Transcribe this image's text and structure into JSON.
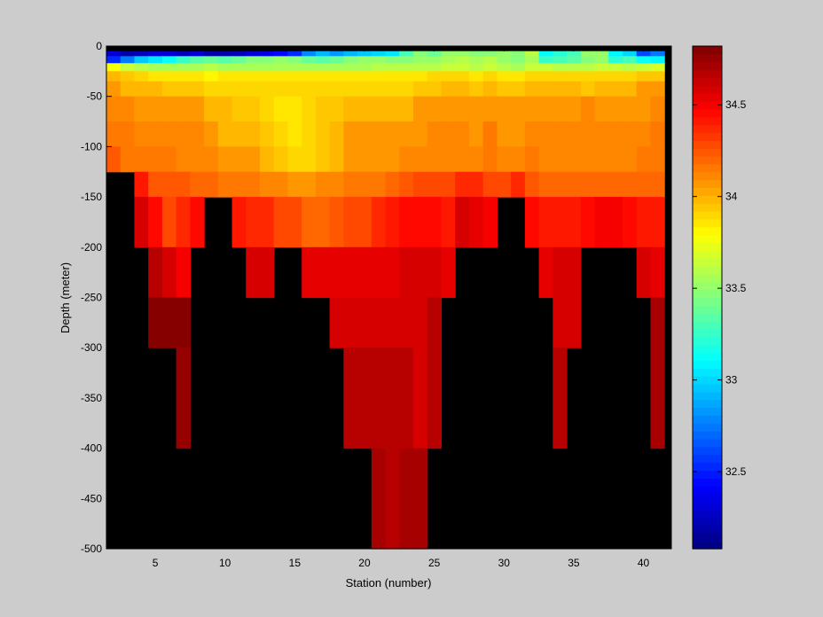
{
  "chart_data": {
    "type": "heatmap",
    "title": "",
    "xlabel": "Station (number)",
    "ylabel": "Depth (meter)",
    "xlim": [
      1.5,
      42
    ],
    "ylim": [
      -500,
      0
    ],
    "x_ticks": [
      5,
      10,
      15,
      20,
      25,
      30,
      35,
      40
    ],
    "y_ticks": [
      0,
      -50,
      -100,
      -150,
      -200,
      -250,
      -300,
      -350,
      -400,
      -450,
      -500
    ],
    "colorbar": {
      "range": [
        32.08,
        34.82
      ],
      "ticks": [
        32.5,
        33,
        33.5,
        34,
        34.5
      ],
      "colormap": "jet",
      "levels": 64
    },
    "missing_color": "#000000",
    "x_stations": [
      2,
      3,
      4,
      5,
      6,
      7,
      8,
      9,
      10,
      11,
      12,
      13,
      14,
      15,
      16,
      17,
      18,
      19,
      20,
      21,
      22,
      23,
      24,
      25,
      26,
      27,
      28,
      29,
      30,
      31,
      32,
      33,
      34,
      35,
      36,
      37,
      38,
      39,
      40,
      41
    ],
    "depth_bins": [
      [
        -5,
        -10
      ],
      [
        -10,
        -17
      ],
      [
        -17,
        -25
      ],
      [
        -25,
        -35
      ],
      [
        -35,
        -50
      ],
      [
        -50,
        -75
      ],
      [
        -75,
        -100
      ],
      [
        -100,
        -125
      ],
      [
        -125,
        -150
      ],
      [
        -150,
        -200
      ],
      [
        -200,
        -250
      ],
      [
        -250,
        -300
      ],
      [
        -300,
        -400
      ],
      [
        -400,
        -500
      ]
    ],
    "values": [
      [
        32.3,
        32.2,
        32.25,
        32.3,
        32.3,
        32.25,
        32.3,
        32.2,
        32.2,
        32.25,
        32.3,
        32.35,
        32.45,
        32.55,
        32.8,
        32.9,
        32.85,
        32.9,
        32.95,
        33.0,
        33.05,
        33.3,
        33.45,
        33.4,
        33.5,
        33.5,
        33.45,
        33.45,
        33.5,
        33.45,
        33.6,
        33.15,
        33.2,
        33.3,
        33.5,
        33.5,
        33.1,
        33.0,
        32.6,
        32.75
      ],
      [
        32.55,
        32.75,
        32.95,
        33.05,
        33.15,
        33.25,
        33.35,
        33.4,
        33.35,
        33.4,
        33.45,
        33.45,
        33.5,
        33.45,
        33.4,
        33.35,
        33.4,
        33.45,
        33.5,
        33.5,
        33.45,
        33.45,
        33.5,
        33.5,
        33.55,
        33.6,
        33.55,
        33.6,
        33.5,
        33.45,
        33.55,
        33.25,
        33.3,
        33.35,
        33.45,
        33.5,
        33.2,
        33.3,
        33.15,
        33.1
      ],
      [
        33.75,
        33.65,
        33.6,
        33.55,
        33.55,
        33.55,
        33.55,
        33.6,
        33.55,
        33.55,
        33.55,
        33.55,
        33.55,
        33.55,
        33.55,
        33.55,
        33.55,
        33.55,
        33.55,
        33.6,
        33.6,
        33.6,
        33.6,
        33.6,
        33.65,
        33.65,
        33.6,
        33.65,
        33.6,
        33.55,
        33.65,
        33.65,
        33.6,
        33.6,
        33.6,
        33.65,
        33.65,
        33.6,
        33.65,
        33.7
      ],
      [
        34.0,
        33.95,
        33.9,
        33.85,
        33.85,
        33.85,
        33.85,
        33.8,
        33.85,
        33.85,
        33.85,
        33.85,
        33.85,
        33.85,
        33.85,
        33.85,
        33.85,
        33.85,
        33.85,
        33.85,
        33.85,
        33.85,
        33.85,
        33.9,
        33.9,
        33.9,
        33.85,
        33.9,
        33.85,
        33.85,
        33.9,
        33.9,
        33.9,
        33.9,
        33.9,
        33.9,
        33.9,
        33.9,
        33.95,
        33.95
      ],
      [
        34.05,
        34.0,
        34.0,
        34.0,
        33.95,
        33.95,
        33.95,
        33.9,
        33.9,
        33.9,
        33.9,
        33.9,
        33.9,
        33.9,
        33.9,
        33.9,
        33.9,
        33.9,
        33.9,
        33.9,
        33.9,
        33.9,
        33.95,
        33.95,
        34.0,
        34.0,
        33.95,
        34.0,
        33.95,
        33.95,
        34.0,
        34.0,
        34.0,
        34.0,
        33.95,
        34.0,
        34.0,
        34.0,
        34.05,
        34.05
      ],
      [
        34.1,
        34.1,
        34.05,
        34.05,
        34.05,
        34.05,
        34.05,
        34.0,
        34.0,
        33.95,
        33.95,
        33.9,
        33.85,
        33.85,
        33.9,
        33.95,
        33.95,
        34.0,
        34.0,
        34.0,
        34.0,
        34.0,
        34.05,
        34.05,
        34.05,
        34.05,
        34.05,
        34.05,
        34.05,
        34.05,
        34.05,
        34.05,
        34.05,
        34.05,
        34.1,
        34.05,
        34.05,
        34.05,
        34.05,
        34.1
      ],
      [
        34.15,
        34.15,
        34.1,
        34.1,
        34.1,
        34.1,
        34.1,
        34.05,
        34.0,
        34.0,
        34.0,
        33.95,
        33.9,
        33.85,
        33.9,
        33.95,
        34.0,
        34.05,
        34.05,
        34.05,
        34.05,
        34.05,
        34.05,
        34.1,
        34.1,
        34.1,
        34.05,
        34.15,
        34.05,
        34.05,
        34.1,
        34.1,
        34.1,
        34.1,
        34.1,
        34.1,
        34.1,
        34.1,
        34.1,
        34.15
      ],
      [
        34.25,
        34.15,
        34.15,
        34.15,
        34.15,
        34.1,
        34.1,
        34.1,
        34.05,
        34.05,
        34.05,
        34.0,
        33.95,
        33.9,
        33.9,
        33.95,
        34.0,
        34.05,
        34.05,
        34.05,
        34.05,
        34.1,
        34.1,
        34.1,
        34.1,
        34.1,
        34.1,
        34.15,
        34.1,
        34.1,
        34.15,
        34.1,
        34.1,
        34.1,
        34.1,
        34.1,
        34.1,
        34.1,
        34.15,
        34.15
      ],
      [
        null,
        null,
        34.4,
        34.25,
        34.25,
        34.25,
        34.2,
        34.2,
        34.15,
        34.15,
        34.15,
        34.1,
        34.1,
        34.05,
        34.05,
        34.1,
        34.1,
        34.15,
        34.15,
        34.15,
        34.2,
        34.25,
        34.3,
        34.3,
        34.3,
        34.35,
        34.35,
        34.3,
        34.3,
        34.35,
        34.25,
        34.2,
        34.2,
        34.2,
        34.2,
        34.2,
        34.2,
        34.2,
        34.2,
        34.2
      ],
      [
        null,
        null,
        34.6,
        34.45,
        34.3,
        34.35,
        34.45,
        null,
        null,
        34.4,
        34.35,
        34.35,
        34.3,
        34.3,
        34.2,
        34.2,
        34.25,
        34.3,
        34.3,
        34.35,
        34.4,
        34.45,
        34.45,
        34.45,
        34.4,
        34.6,
        34.55,
        34.5,
        null,
        null,
        34.45,
        34.4,
        34.4,
        34.4,
        34.45,
        34.5,
        34.5,
        34.45,
        34.4,
        34.4
      ],
      [
        null,
        null,
        null,
        34.65,
        34.6,
        34.5,
        null,
        null,
        null,
        null,
        34.6,
        34.6,
        null,
        null,
        34.55,
        34.55,
        34.55,
        34.55,
        34.55,
        34.55,
        34.55,
        34.6,
        34.6,
        34.6,
        34.55,
        null,
        null,
        null,
        null,
        null,
        null,
        34.55,
        34.6,
        34.6,
        null,
        null,
        null,
        null,
        34.6,
        34.55
      ],
      [
        null,
        null,
        null,
        34.82,
        34.82,
        34.82,
        null,
        null,
        null,
        null,
        null,
        null,
        null,
        null,
        null,
        null,
        34.6,
        34.6,
        34.6,
        34.6,
        34.6,
        34.6,
        34.6,
        34.65,
        null,
        null,
        null,
        null,
        null,
        null,
        null,
        null,
        34.6,
        34.6,
        null,
        null,
        null,
        null,
        null,
        34.7
      ],
      [
        null,
        null,
        null,
        null,
        null,
        34.75,
        null,
        null,
        null,
        null,
        null,
        null,
        null,
        null,
        null,
        null,
        null,
        34.65,
        34.65,
        34.65,
        34.65,
        34.65,
        34.6,
        34.65,
        null,
        null,
        null,
        null,
        null,
        null,
        null,
        null,
        34.65,
        null,
        null,
        null,
        null,
        null,
        null,
        34.7
      ],
      [
        null,
        null,
        null,
        null,
        null,
        null,
        null,
        null,
        null,
        null,
        null,
        null,
        null,
        null,
        null,
        null,
        null,
        null,
        null,
        34.7,
        34.65,
        34.7,
        34.7,
        null,
        null,
        null,
        null,
        null,
        null,
        null,
        null,
        null,
        null,
        null,
        null,
        null,
        null,
        null,
        null,
        null
      ]
    ]
  }
}
